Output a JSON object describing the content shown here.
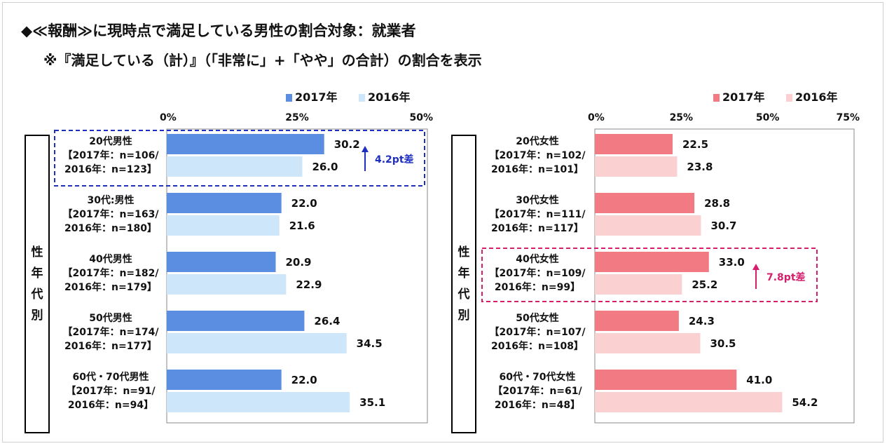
{
  "header": {
    "title": "◆≪報酬≫に現時点で満足している男性の割合対象：就業者",
    "subtitle": "※『満足している（計）』（「非常に」+「やや」の合計）の割合を表示"
  },
  "side_label": {
    "chars": [
      "性",
      "年",
      "代",
      "別"
    ]
  },
  "colors": {
    "male_2017": "#5b8de0",
    "male_2016": "#cde6fa",
    "female_2017": "#f17a83",
    "female_2016": "#fbd0d1",
    "male_highlight": "#1f2fbf",
    "female_highlight": "#d61f6c"
  },
  "chart_data": [
    {
      "type": "bar",
      "orientation": "horizontal",
      "legend_position": "top",
      "xlim": [
        0,
        50
      ],
      "ticks": [
        "0%",
        "25%",
        "50%"
      ],
      "tick_values": [
        0,
        25,
        50
      ],
      "categories": [
        {
          "name": "20代男性",
          "n1": "【2017年：n=106/",
          "n2": "2016年：n=123】"
        },
        {
          "name": "30代:男性",
          "n1": "【2017年：n=163/",
          "n2": "2016年：n=180】"
        },
        {
          "name": "40代男性",
          "n1": "【2017年：n=182/",
          "n2": "2016年：n=179】"
        },
        {
          "name": "50代男性",
          "n1": "【2017年：n=174/",
          "n2": "2016年：n=177】"
        },
        {
          "name": "60代・70代男性",
          "n1": "【2017年：n=91/",
          "n2": "2016年：n=94】"
        }
      ],
      "series": [
        {
          "name": "2017年",
          "values": [
            30.2,
            22.0,
            20.9,
            26.4,
            22.0
          ],
          "labels": [
            "30.2",
            "22.0",
            "20.9",
            "26.4",
            "22.0"
          ]
        },
        {
          "name": "2016年",
          "values": [
            26.0,
            21.6,
            22.9,
            34.5,
            35.1
          ],
          "labels": [
            "26.0",
            "21.6",
            "22.9",
            "34.5",
            "35.1"
          ]
        }
      ],
      "annotation": {
        "category_index": 0,
        "text": "4.2pt差"
      }
    },
    {
      "type": "bar",
      "orientation": "horizontal",
      "legend_position": "top",
      "xlim": [
        0,
        75
      ],
      "ticks": [
        "0%",
        "25%",
        "50%",
        "75%"
      ],
      "tick_values": [
        0,
        25,
        50,
        75
      ],
      "categories": [
        {
          "name": "20代女性",
          "n1": "【2017年：n=102/",
          "n2": "2016年：n=101】"
        },
        {
          "name": "30代女性",
          "n1": "【2017年：n=111/",
          "n2": "2016年：n=117】"
        },
        {
          "name": "40代女性",
          "n1": "【2017年：n=109/",
          "n2": "2016年：n=99】"
        },
        {
          "name": "50代女性",
          "n1": "【2017年：n=107/",
          "n2": "2016年：n=108】"
        },
        {
          "name": "60代・70代女性",
          "n1": "【2017年：n=61/",
          "n2": "2016年：n=48】"
        }
      ],
      "series": [
        {
          "name": "2017年",
          "values": [
            22.5,
            28.8,
            33.0,
            24.3,
            41.0
          ],
          "labels": [
            "22.5",
            "28.8",
            "33.0",
            "24.3",
            "41.0"
          ]
        },
        {
          "name": "2016年",
          "values": [
            23.8,
            30.7,
            25.2,
            30.5,
            54.2
          ],
          "labels": [
            "23.8",
            "30.7",
            "25.2",
            "30.5",
            "54.2"
          ]
        }
      ],
      "annotation": {
        "category_index": 2,
        "text": "7.8pt差"
      }
    }
  ]
}
